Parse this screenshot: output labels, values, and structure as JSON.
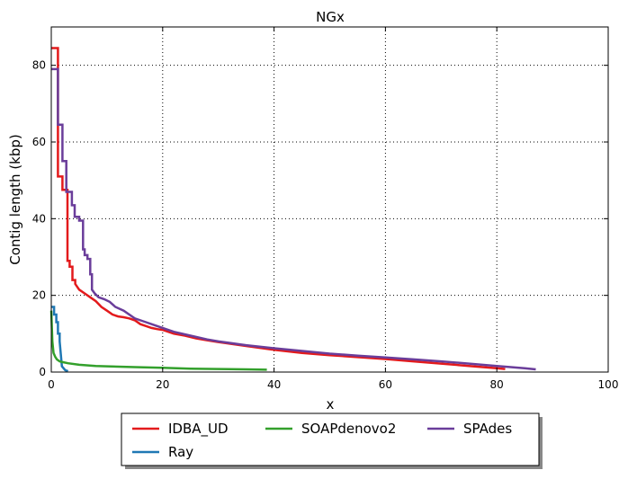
{
  "chart_data": {
    "type": "line",
    "title": "NGx",
    "xlabel": "x",
    "ylabel": "Contig length  (kbp)",
    "xlim": [
      0,
      100
    ],
    "ylim": [
      0,
      90
    ],
    "xticks": [
      0,
      20,
      40,
      60,
      80,
      100
    ],
    "yticks": [
      0,
      20,
      40,
      60,
      80
    ],
    "grid": true,
    "legend_position": "bottom-center",
    "series": [
      {
        "name": "IDBA_UD",
        "color": "#e31a1c",
        "x": [
          0,
          1.2,
          1.2,
          2.0,
          2.0,
          2.9,
          2.9,
          3.3,
          3.3,
          3.8,
          3.8,
          4.3,
          4.3,
          5,
          6,
          7,
          8,
          9,
          10,
          11,
          12,
          13,
          14,
          15,
          16,
          17,
          18,
          19,
          20,
          22,
          24,
          26,
          28,
          30,
          35,
          40,
          45,
          50,
          55,
          60,
          65,
          70,
          75,
          80,
          81.5
        ],
        "y": [
          84.5,
          84.5,
          51,
          51,
          47.5,
          47.5,
          29,
          29,
          27.5,
          27.5,
          24,
          24,
          23,
          21.5,
          20.5,
          19.5,
          18.5,
          17,
          16,
          15,
          14.5,
          14.3,
          14,
          13.5,
          12.5,
          12,
          11.5,
          11.2,
          11,
          10,
          9.5,
          8.8,
          8.3,
          7.8,
          6.8,
          5.8,
          5,
          4.4,
          3.9,
          3.4,
          2.8,
          2.2,
          1.6,
          1.0,
          0.8
        ]
      },
      {
        "name": "Ray",
        "color": "#1f78b4",
        "x": [
          0,
          0.5,
          0.5,
          0.9,
          0.9,
          1.2,
          1.2,
          1.5,
          1.5,
          1.9,
          2.5,
          3.0
        ],
        "y": [
          17,
          17,
          15,
          15,
          13,
          13,
          10,
          10,
          8,
          1.5,
          0.5,
          0.2
        ]
      },
      {
        "name": "SOAPdenovo2",
        "color": "#33a02c",
        "x": [
          0,
          0.2,
          0.4,
          0.7,
          1.0,
          1.5,
          2.0,
          3.0,
          5.0,
          8.0,
          10,
          15,
          20,
          25,
          30,
          35,
          38.7
        ],
        "y": [
          16,
          8,
          5,
          4,
          3.3,
          2.8,
          2.6,
          2.3,
          1.9,
          1.6,
          1.5,
          1.3,
          1.1,
          0.9,
          0.8,
          0.7,
          0.6
        ]
      },
      {
        "name": "SPAdes",
        "color": "#6a3d9a",
        "x": [
          0,
          1.2,
          1.2,
          2.0,
          2.0,
          2.7,
          2.7,
          3.7,
          3.7,
          4.2,
          4.2,
          5.0,
          5.0,
          5.7,
          5.7,
          6.0,
          6.0,
          6.5,
          6.5,
          7.0,
          7.0,
          7.3,
          7.3,
          7.8,
          8.5,
          9.5,
          10.5,
          11.5,
          13,
          15,
          17,
          19,
          20,
          22,
          25,
          28,
          30,
          35,
          40,
          45,
          50,
          55,
          60,
          65,
          70,
          75,
          80,
          85,
          87
        ],
        "y": [
          79,
          79,
          64.5,
          64.5,
          55,
          55,
          47,
          47,
          43.5,
          43.5,
          40.5,
          40.5,
          39.5,
          39.5,
          32,
          32,
          30.5,
          30.5,
          29.5,
          29.5,
          25.5,
          25.5,
          21.5,
          20.5,
          19.5,
          19,
          18.3,
          17,
          16,
          14,
          13,
          12,
          11.5,
          10.5,
          9.5,
          8.5,
          8,
          7,
          6.2,
          5.5,
          4.8,
          4.3,
          3.8,
          3.3,
          2.8,
          2.2,
          1.6,
          1.0,
          0.7
        ]
      }
    ]
  }
}
